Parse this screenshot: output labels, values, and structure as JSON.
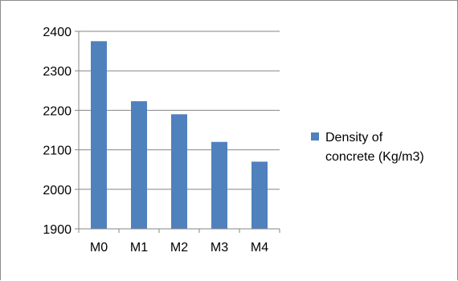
{
  "chart_data": {
    "type": "bar",
    "categories": [
      "M0",
      "M1",
      "M2",
      "M3",
      "M4"
    ],
    "series": [
      {
        "name": "Density of concrete (Kg/m3)",
        "values": [
          2375,
          2223,
          2190,
          2120,
          2070
        ],
        "color": "#4f81bd"
      }
    ],
    "y_ticks": [
      "1900",
      "2000",
      "2100",
      "2200",
      "2300",
      "2400"
    ],
    "ylim": [
      1900,
      2400
    ],
    "grid": true,
    "legend_position": "right",
    "legend_lines": [
      "Density of",
      "concrete (Kg/m3)"
    ]
  }
}
